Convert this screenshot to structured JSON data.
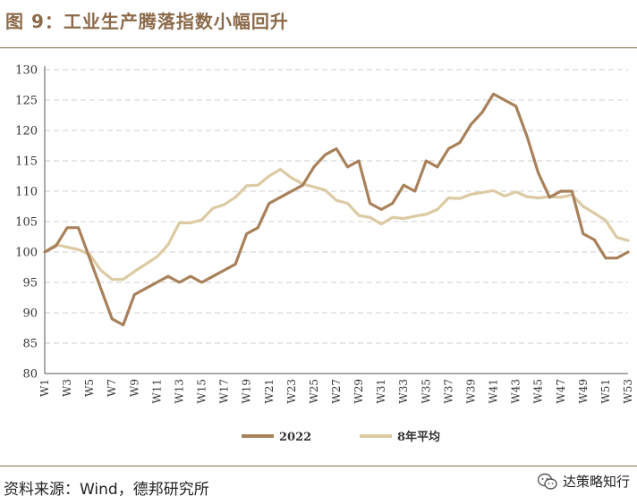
{
  "title": "图 9：工业生产腾落指数小幅回升",
  "source": "资料来源：Wind，德邦研究所",
  "brand": {
    "name": "达策略知行",
    "logo_icon": "wechat-icon"
  },
  "colors": {
    "s2022": "#a8815a",
    "avg": "#dccaa3",
    "accent": "#8b6a4a",
    "grid": "#cfcfcf"
  },
  "chart_data": {
    "type": "line",
    "title": "",
    "xlabel": "",
    "ylabel": "",
    "ylim": [
      80,
      130
    ],
    "yticks": [
      80,
      85,
      90,
      95,
      100,
      105,
      110,
      115,
      120,
      125,
      130
    ],
    "x": [
      "W1",
      "W2",
      "W3",
      "W4",
      "W5",
      "W6",
      "W7",
      "W8",
      "W9",
      "W10",
      "W11",
      "W12",
      "W13",
      "W14",
      "W15",
      "W16",
      "W17",
      "W18",
      "W19",
      "W20",
      "W21",
      "W22",
      "W23",
      "W24",
      "W25",
      "W26",
      "W27",
      "W28",
      "W29",
      "W30",
      "W31",
      "W32",
      "W33",
      "W34",
      "W35",
      "W36",
      "W37",
      "W38",
      "W39",
      "W40",
      "W41",
      "W42",
      "W43",
      "W44",
      "W45",
      "W46",
      "W47",
      "W48",
      "W49",
      "W50",
      "W51",
      "W52",
      "W53"
    ],
    "xtick_labels": [
      "W1",
      "W3",
      "W5",
      "W7",
      "W9",
      "W11",
      "W13",
      "W15",
      "W17",
      "W19",
      "W21",
      "W23",
      "W25",
      "W27",
      "W29",
      "W31",
      "W33",
      "W35",
      "W37",
      "W39",
      "W41",
      "W43",
      "W45",
      "W47",
      "W49",
      "W51",
      "W53"
    ],
    "grid": true,
    "legend": "bottom",
    "series": [
      {
        "name": "2022",
        "values": [
          100,
          101,
          104,
          104,
          99,
          94,
          89,
          88,
          93,
          94,
          95,
          96,
          95,
          96,
          95,
          96,
          97,
          98,
          103,
          104,
          108,
          109,
          110,
          111,
          114,
          116,
          117,
          114,
          115,
          108,
          107,
          108,
          111,
          110,
          115,
          114,
          117,
          118,
          121,
          123,
          126,
          125,
          124,
          119,
          113,
          109,
          110,
          110,
          103,
          102,
          99,
          99,
          100
        ]
      },
      {
        "name": "8年平均",
        "values": [
          100,
          101.2,
          100.8,
          100.4,
          99.6,
          97,
          95.5,
          95.5,
          96.8,
          98,
          99.2,
          101.2,
          104.8,
          104.8,
          105.3,
          107.2,
          107.8,
          109,
          110.9,
          111,
          112.5,
          113.6,
          112.2,
          111.2,
          110.7,
          110.2,
          108.5,
          108,
          106,
          105.7,
          104.6,
          105.7,
          105.5,
          105.9,
          106.2,
          107,
          108.9,
          108.8,
          109.5,
          109.8,
          110.1,
          109.2,
          109.9,
          109.1,
          108.9,
          109.1,
          109,
          109.4,
          107.5,
          106.4,
          105.2,
          102.4,
          101.9
        ]
      }
    ]
  }
}
